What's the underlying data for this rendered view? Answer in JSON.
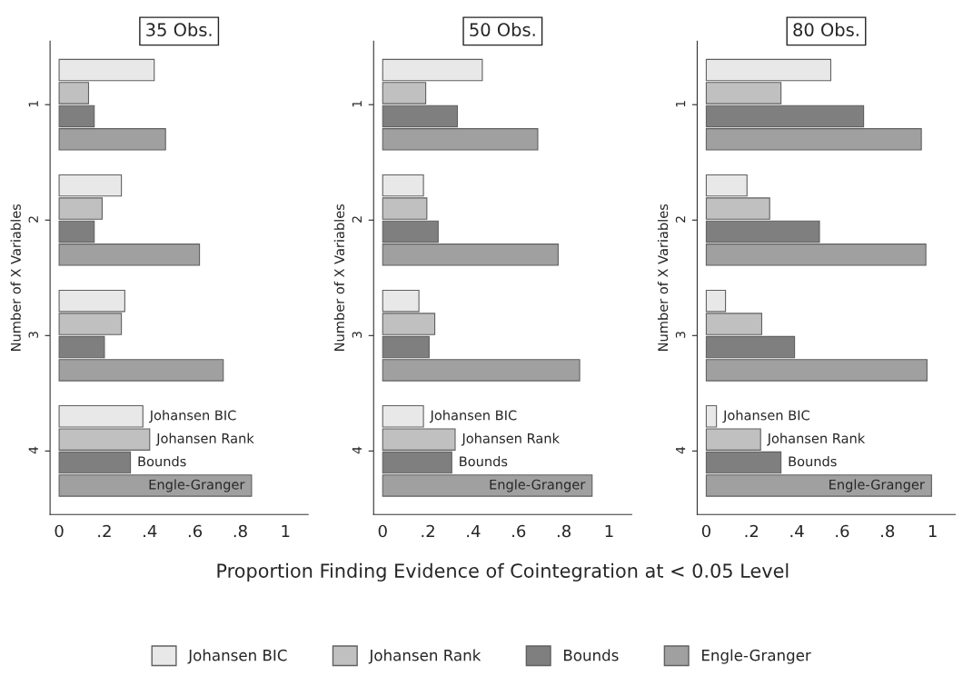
{
  "chart_data": [
    {
      "type": "bar",
      "orientation": "horizontal",
      "title": "35 Obs.",
      "ylabel": "Number of X Variables",
      "categories": [
        "1",
        "2",
        "3",
        "4"
      ],
      "xlim": [
        -0.04,
        1.1
      ],
      "xticks": [
        0,
        {
          "value": 0.2,
          "label": ".2"
        },
        {
          "value": 0.4,
          "label": ".4"
        },
        {
          "value": 0.6,
          "label": ".6"
        },
        {
          "value": 0.8,
          "label": ".8"
        },
        1
      ],
      "grid": false,
      "legend": "bottom",
      "series": [
        {
          "name": "Johansen BIC",
          "color": "#e8e8e8",
          "values": [
            0.42,
            0.275,
            0.29,
            0.37
          ]
        },
        {
          "name": "Johansen Rank",
          "color": "#c0c0c0",
          "values": [
            0.13,
            0.19,
            0.275,
            0.4
          ]
        },
        {
          "name": "Bounds",
          "color": "#7f7f7f",
          "values": [
            0.155,
            0.155,
            0.2,
            0.315
          ]
        },
        {
          "name": "Engle-Granger",
          "color": "#a0a0a0",
          "values": [
            0.47,
            0.62,
            0.725,
            0.85
          ]
        }
      ]
    },
    {
      "type": "bar",
      "orientation": "horizontal",
      "title": "50 Obs.",
      "ylabel": "Number of X Variables",
      "xlabel": "Proportion Finding Evidence of Cointegration at < 0.05 Level",
      "categories": [
        "1",
        "2",
        "3",
        "4"
      ],
      "xlim": [
        -0.04,
        1.1
      ],
      "xticks": [
        0,
        {
          "value": 0.2,
          "label": ".2"
        },
        {
          "value": 0.4,
          "label": ".4"
        },
        {
          "value": 0.6,
          "label": ".6"
        },
        {
          "value": 0.8,
          "label": ".8"
        },
        1
      ],
      "grid": false,
      "series": [
        {
          "name": "Johansen BIC",
          "color": "#e8e8e8",
          "values": [
            0.44,
            0.18,
            0.16,
            0.18
          ]
        },
        {
          "name": "Johansen Rank",
          "color": "#c0c0c0",
          "values": [
            0.19,
            0.195,
            0.23,
            0.32
          ]
        },
        {
          "name": "Bounds",
          "color": "#7f7f7f",
          "values": [
            0.33,
            0.245,
            0.205,
            0.305
          ]
        },
        {
          "name": "Engle-Granger",
          "color": "#a0a0a0",
          "values": [
            0.685,
            0.775,
            0.87,
            0.925
          ]
        }
      ]
    },
    {
      "type": "bar",
      "orientation": "horizontal",
      "title": "80 Obs.",
      "ylabel": "Number of X Variables",
      "categories": [
        "1",
        "2",
        "3",
        "4"
      ],
      "xlim": [
        -0.04,
        1.1
      ],
      "xticks": [
        0,
        {
          "value": 0.2,
          "label": ".2"
        },
        {
          "value": 0.4,
          "label": ".4"
        },
        {
          "value": 0.6,
          "label": ".6"
        },
        {
          "value": 0.8,
          "label": ".8"
        },
        1
      ],
      "grid": false,
      "series": [
        {
          "name": "Johansen BIC",
          "color": "#e8e8e8",
          "values": [
            0.55,
            0.18,
            0.085,
            0.045
          ]
        },
        {
          "name": "Johansen Rank",
          "color": "#c0c0c0",
          "values": [
            0.33,
            0.28,
            0.245,
            0.24
          ]
        },
        {
          "name": "Bounds",
          "color": "#7f7f7f",
          "values": [
            0.695,
            0.5,
            0.39,
            0.33
          ]
        },
        {
          "name": "Engle-Granger",
          "color": "#a0a0a0",
          "values": [
            0.95,
            0.97,
            0.975,
            0.995
          ]
        }
      ]
    }
  ]
}
